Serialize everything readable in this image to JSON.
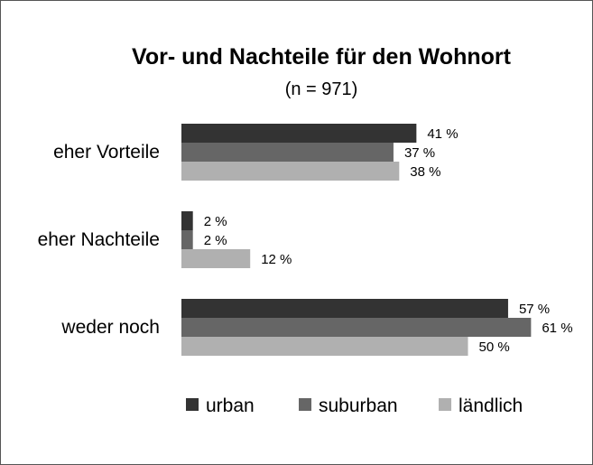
{
  "chart_data": {
    "type": "bar",
    "orientation": "horizontal",
    "title": "Vor- und Nachteile für den Wohnort",
    "subtitle": "(n = 971)",
    "categories": [
      "eher Vorteile",
      "eher Nachteile",
      "weder noch"
    ],
    "series": [
      {
        "name": "urban",
        "color": "#333333",
        "values": [
          41,
          2,
          57
        ],
        "labels": [
          "41 %",
          "2 %",
          "57 %"
        ]
      },
      {
        "name": "suburban",
        "color": "#666666",
        "values": [
          37,
          2,
          61
        ],
        "labels": [
          "37 %",
          "2 %",
          "61 %"
        ]
      },
      {
        "name": "ländlich",
        "color": "#b0b0b0",
        "values": [
          38,
          12,
          50
        ],
        "labels": [
          "38 %",
          "12 %",
          "50 %"
        ]
      }
    ],
    "xlim": [
      0,
      70
    ],
    "grid": false,
    "legend": "bottom"
  }
}
